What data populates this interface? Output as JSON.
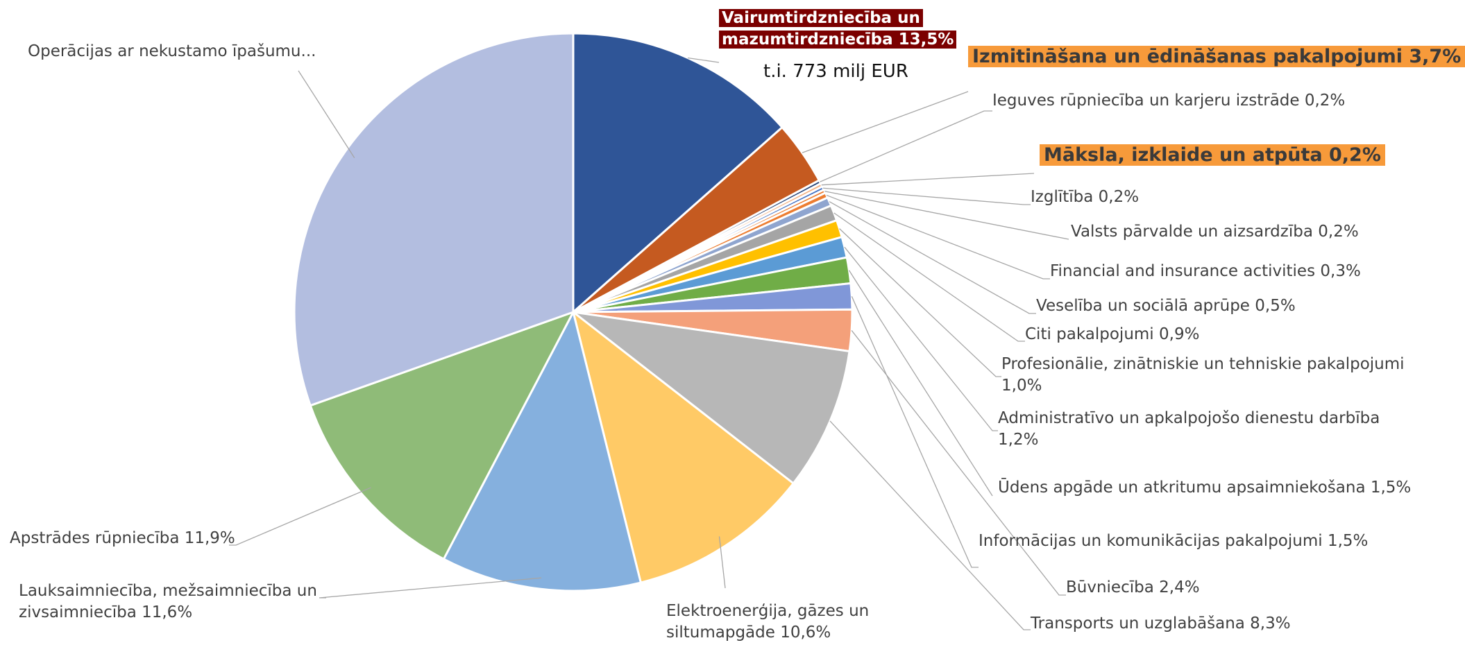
{
  "chart_data": {
    "type": "pie",
    "title": "",
    "slices": [
      {
        "label": "Vairumtirdzniecība un mazumtirdzniecība 13,5%",
        "value": 13.5,
        "color": "#2f5597"
      },
      {
        "label": "Izmitināšana un ēdināšanas pakalpojumi 3,7%",
        "value": 3.7,
        "color": "#c55a20"
      },
      {
        "label": "Ieguves rūpniecība un karjeru izstrāde 0,2%",
        "value": 0.2,
        "color": "#264478"
      },
      {
        "label": "Māksla, izklaide un atpūta 0,2%",
        "value": 0.2,
        "color": "#f4b183"
      },
      {
        "label": "Izglītība 0,2%",
        "value": 0.2,
        "color": "#4472c4"
      },
      {
        "label": "Valsts pārvalde un aizsardzība 0,2%",
        "value": 0.2,
        "color": "#ed7d31"
      },
      {
        "label": "Financial and insurance activities 0,3%",
        "value": 0.3,
        "color": "#ed7d31"
      },
      {
        "label": "Veselība un sociālā aprūpe 0,5%",
        "value": 0.5,
        "color": "#8fa5cf"
      },
      {
        "label": "Citi pakalpojumi 0,9%",
        "value": 0.9,
        "color": "#a5a5a5"
      },
      {
        "label": "Profesionālie, zinātniskie un tehniskie pakalpojumi 1,0%",
        "value": 1.0,
        "color": "#ffc000"
      },
      {
        "label": "Administratīvo un apkalpojošo dienestu darbība 1,2%",
        "value": 1.2,
        "color": "#5b9bd5"
      },
      {
        "label": "Ūdens apgāde un atkritumu apsaimniekošana 1,5%",
        "value": 1.5,
        "color": "#70ad47"
      },
      {
        "label": "Informācijas un komunikācijas pakalpojumi 1,5%",
        "value": 1.5,
        "color": "#8097d8"
      },
      {
        "label": "Būvniecība 2,4%",
        "value": 2.4,
        "color": "#f4a07a"
      },
      {
        "label": "Transports un uzglabāšana 8,3%",
        "value": 8.3,
        "color": "#b7b7b7"
      },
      {
        "label": "Elektroenerģija, gāzes un siltumapgāde 10,6%",
        "value": 10.6,
        "color": "#ffca66"
      },
      {
        "label": "Lauksaimniecība, mežsaimniecība un zivsaimniecība 11,6%",
        "value": 11.6,
        "color": "#85b0de"
      },
      {
        "label": "Apstrādes rūpniecība 11,9%",
        "value": 11.9,
        "color": "#8fbb78"
      },
      {
        "label": "Operācijas ar nekustamo īpašumu...",
        "value": 30.5,
        "color": "#b3bee0"
      }
    ],
    "annotations": {
      "note": "t.i. 773 milj EUR"
    },
    "highlight_colors": {
      "red": "#7b0000",
      "orange": "#f79a3a"
    },
    "legend": "none"
  },
  "labels": {
    "l0a": "Vairumtirdzniecība un",
    "l0b": "mazumtirdzniecība 13,5%",
    "l1": "Izmitināšana un ēdināšanas pakalpojumi 3,7%",
    "l2": "Ieguves rūpniecība un karjeru izstrāde 0,2%",
    "l3": "Māksla, izklaide un atpūta 0,2%",
    "l4": "Izglītība 0,2%",
    "l5": "Valsts pārvalde un aizsardzība 0,2%",
    "l6": "Financial and insurance activities 0,3%",
    "l7": "Veselība un sociālā aprūpe 0,5%",
    "l8": "Citi pakalpojumi 0,9%",
    "l9": "Profesionālie, zinātniskie un tehniskie pakalpojumi 1,0%",
    "l10": "Administratīvo un apkalpojošo dienestu darbība 1,2%",
    "l11": "Ūdens apgāde un atkritumu apsaimniekošana  1,5%",
    "l12": "Informācijas un komunikācijas pakalpojumi 1,5%",
    "l13": "Būvniecība 2,4%",
    "l14": "Transports un uzglabāšana 8,3%",
    "l15": "Elektroenerģija, gāzes un siltumapgāde 10,6%",
    "l16": "Lauksaimniecība, mežsaimniecība un zivsaimniecība 11,6%",
    "l17": "Apstrādes rūpniecība 11,9%",
    "l18": "Operācijas ar nekustamo īpašumu..."
  }
}
